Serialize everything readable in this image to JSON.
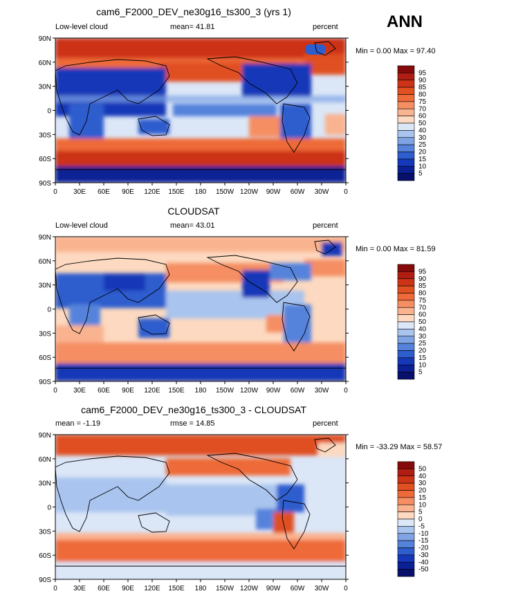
{
  "season": "ANN",
  "panels": [
    {
      "title": "cam6_F2000_DEV_ne30g16_ts300_3 (yrs 1)",
      "left_label": "Low-level cloud",
      "center_label": "mean=  41.81",
      "right_label": "percent",
      "stats": "Min =    0.00 Max =  97.40",
      "kind": "abs"
    },
    {
      "title": "CLOUDSAT",
      "left_label": "Low-level cloud",
      "center_label": "mean=  43.01",
      "right_label": "percent",
      "stats": "Min =    0.00 Max =  81.59",
      "kind": "abs"
    },
    {
      "title": "cam6_F2000_DEV_ne30g16_ts300_3 - CLOUDSAT",
      "left_label": "mean =  -1.19",
      "center_label": "rmse =  14.85",
      "right_label": "percent",
      "stats": "Min = -33.29 Max =  58.57",
      "kind": "diff"
    }
  ],
  "axes": {
    "lat_ticks": [
      "90N",
      "60N",
      "30N",
      "0",
      "30S",
      "60S",
      "90S"
    ],
    "lon_ticks": [
      "0",
      "30E",
      "60E",
      "90E",
      "120E",
      "150E",
      "180",
      "150W",
      "120W",
      "90W",
      "60W",
      "30W",
      "0"
    ]
  },
  "chart_data": [
    {
      "type": "heatmap",
      "title": "cam6_F2000_DEV_ne30g16_ts300_3 (yrs 1)",
      "variable": "Low-level cloud",
      "units": "percent",
      "mean": 41.81,
      "min": 0.0,
      "max": 97.4,
      "xlim": [
        0,
        360
      ],
      "ylim": [
        -90,
        90
      ],
      "colorbar_levels": [
        5,
        10,
        15,
        20,
        25,
        30,
        40,
        50,
        60,
        70,
        75,
        80,
        85,
        90,
        95
      ]
    },
    {
      "type": "heatmap",
      "title": "CLOUDSAT",
      "variable": "Low-level cloud",
      "units": "percent",
      "mean": 43.01,
      "min": 0.0,
      "max": 81.59,
      "xlim": [
        0,
        360
      ],
      "ylim": [
        -90,
        90
      ],
      "colorbar_levels": [
        5,
        10,
        15,
        20,
        25,
        30,
        40,
        50,
        60,
        70,
        75,
        80,
        85,
        90,
        95
      ]
    },
    {
      "type": "heatmap",
      "title": "cam6_F2000_DEV_ne30g16_ts300_3 - CLOUDSAT",
      "units": "percent",
      "mean": -1.19,
      "rmse": 14.85,
      "min": -33.29,
      "max": 58.57,
      "xlim": [
        0,
        360
      ],
      "ylim": [
        -90,
        90
      ],
      "colorbar_levels": [
        -50,
        -40,
        -30,
        -20,
        -15,
        -10,
        -5,
        0,
        5,
        10,
        15,
        20,
        30,
        40,
        50
      ]
    }
  ],
  "colorbars": {
    "abs": {
      "labels": [
        "95",
        "90",
        "85",
        "80",
        "75",
        "70",
        "60",
        "50",
        "40",
        "30",
        "25",
        "20",
        "15",
        "10",
        "5"
      ],
      "colors": [
        "#870a0a",
        "#b01d12",
        "#cc3317",
        "#e05020",
        "#ee6a38",
        "#f58e62",
        "#f9b38f",
        "#fcd9c0",
        "#dbe6f7",
        "#a9c4ee",
        "#7fa4e5",
        "#5583db",
        "#2e5dce",
        "#1538b8",
        "#0c2095",
        "#08106b"
      ]
    },
    "diff": {
      "labels": [
        "50",
        "40",
        "30",
        "20",
        "15",
        "10",
        "5",
        "0",
        "-5",
        "-10",
        "-15",
        "-20",
        "-30",
        "-40",
        "-50"
      ],
      "colors": [
        "#870a0a",
        "#b01d12",
        "#cc3317",
        "#e05020",
        "#ee6a38",
        "#f58e62",
        "#f9b38f",
        "#fcd9c0",
        "#dbe6f7",
        "#a9c4ee",
        "#7fa4e5",
        "#5583db",
        "#2e5dce",
        "#1538b8",
        "#0c2095",
        "#08106b"
      ]
    }
  }
}
